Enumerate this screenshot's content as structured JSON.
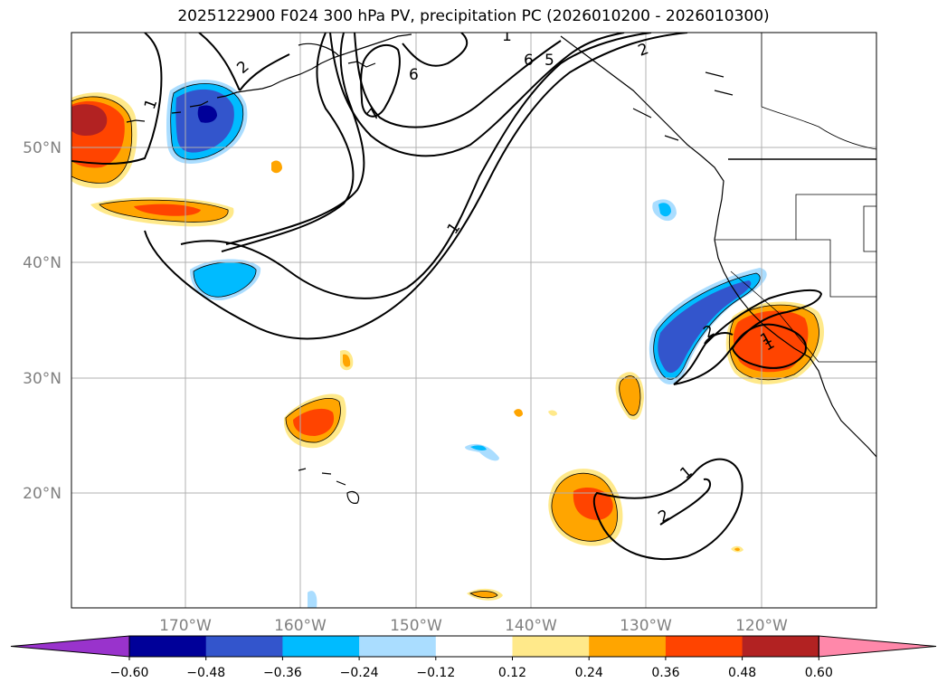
{
  "chart_data": {
    "type": "map-contour",
    "title": "2025122900 F024 300 hPa PV, precipitation PC (2026010200 - 2026010300)",
    "lat_ticks": [
      "50°N",
      "40°N",
      "30°N",
      "20°N"
    ],
    "lon_ticks": [
      "170°W",
      "160°W",
      "150°W",
      "140°W",
      "130°W",
      "120°W"
    ],
    "pv_contour_levels": [
      1,
      2,
      5,
      6,
      7
    ],
    "pv_contour_labels": [
      "1",
      "2",
      "1",
      "6",
      "7",
      "1",
      "6",
      "5",
      "2",
      "1",
      "2",
      "2",
      "1",
      "1",
      "2"
    ],
    "colorbar": {
      "ticks": [
        "−0.60",
        "−0.48",
        "−0.36",
        "−0.24",
        "−0.12",
        "0.12",
        "0.24",
        "0.36",
        "0.48",
        "0.60"
      ],
      "colors": [
        "#9933cc",
        "#000099",
        "#3355cc",
        "#00bbff",
        "#aaddff",
        "#ffffff",
        "#ffe98a",
        "#ffa500",
        "#ff4400",
        "#b22222",
        "#ff88aa"
      ]
    }
  }
}
